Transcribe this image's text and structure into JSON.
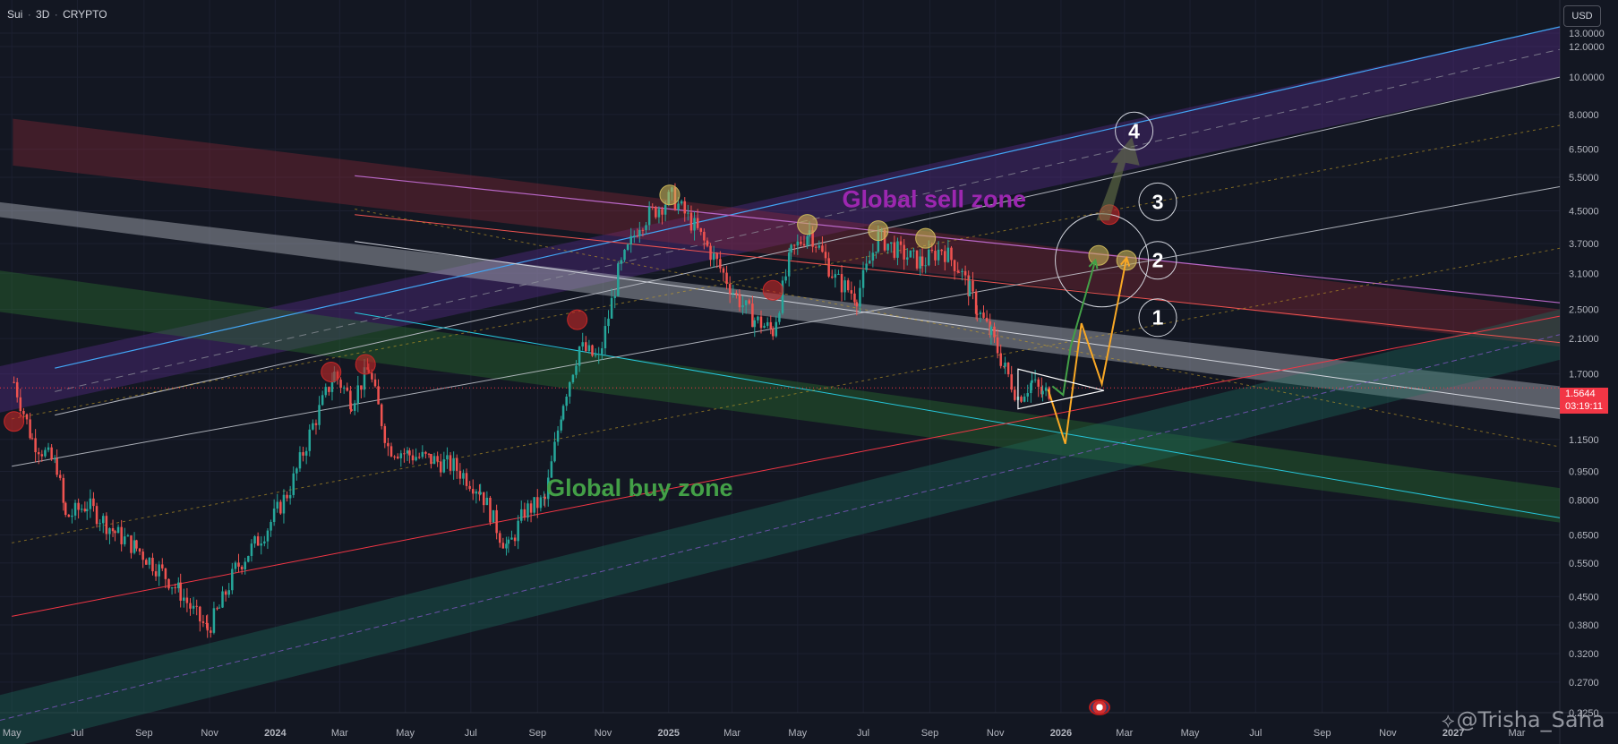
{
  "header": {
    "symbol": "Sui",
    "interval": "3D",
    "exchange": "CRYPTO",
    "separator": "·"
  },
  "currency": "USD",
  "last_price": "1.5644",
  "countdown": "03:19:11",
  "watermark": "@Trisha_Saha",
  "colors": {
    "background": "#131722",
    "candle_up": "#26a69a",
    "candle_down": "#ef5350",
    "sell_zone": "#9c27b0",
    "buy_zone": "#43a047",
    "price_line": "#f23645"
  },
  "chart_data": {
    "type": "candlestick",
    "y_scale": "log",
    "ylim": [
      0.225,
      13.5
    ],
    "xlim": [
      "2023-04-20",
      "2027-04-10"
    ],
    "y_ticks": [
      "13.0000",
      "12.0000",
      "10.0000",
      "8.0000",
      "6.5000",
      "5.5000",
      "4.5000",
      "3.7000",
      "3.1000",
      "2.5000",
      "2.1000",
      "1.7000",
      "1.1500",
      "0.9500",
      "0.8000",
      "0.6500",
      "0.5500",
      "0.4500",
      "0.3800",
      "0.3200",
      "0.2700",
      "0.2250"
    ],
    "x_ticks": [
      "May",
      "Jul",
      "Sep",
      "Nov",
      "2024",
      "Mar",
      "May",
      "Jul",
      "Sep",
      "Nov",
      "2025",
      "Mar",
      "May",
      "Jul",
      "Sep",
      "Nov",
      "2026",
      "Mar",
      "May",
      "Jul",
      "Sep",
      "Nov",
      "2027",
      "Mar"
    ],
    "x_tick_dates": [
      "2023-05-01",
      "2023-07-01",
      "2023-09-01",
      "2023-11-01",
      "2024-01-01",
      "2024-03-01",
      "2024-05-01",
      "2024-07-01",
      "2024-09-01",
      "2024-11-01",
      "2025-01-01",
      "2025-03-01",
      "2025-05-01",
      "2025-07-01",
      "2025-09-01",
      "2025-11-01",
      "2026-01-01",
      "2026-03-01",
      "2026-05-01",
      "2026-07-01",
      "2026-09-01",
      "2026-11-01",
      "2027-01-01",
      "2027-03-01"
    ],
    "price_path": [
      [
        "2023-05-03",
        1.62
      ],
      [
        "2023-05-20",
        1.15
      ],
      [
        "2023-06-12",
        0.98
      ],
      [
        "2023-06-20",
        0.72
      ],
      [
        "2023-07-10",
        0.78
      ],
      [
        "2023-08-05",
        0.66
      ],
      [
        "2023-08-25",
        0.6
      ],
      [
        "2023-09-15",
        0.53
      ],
      [
        "2023-10-05",
        0.46
      ],
      [
        "2023-10-20",
        0.4
      ],
      [
        "2023-10-30",
        0.37
      ],
      [
        "2023-11-10",
        0.42
      ],
      [
        "2023-11-25",
        0.53
      ],
      [
        "2023-12-10",
        0.6
      ],
      [
        "2023-12-25",
        0.68
      ],
      [
        "2024-01-15",
        0.86
      ],
      [
        "2024-02-05",
        1.25
      ],
      [
        "2024-02-25",
        1.7
      ],
      [
        "2024-03-12",
        1.45
      ],
      [
        "2024-03-28",
        1.75
      ],
      [
        "2024-04-15",
        1.1
      ],
      [
        "2024-05-05",
        1.05
      ],
      [
        "2024-05-25",
        1.02
      ],
      [
        "2024-06-15",
        0.98
      ],
      [
        "2024-07-10",
        0.85
      ],
      [
        "2024-07-28",
        0.65
      ],
      [
        "2024-08-05",
        0.6
      ],
      [
        "2024-08-20",
        0.75
      ],
      [
        "2024-09-08",
        0.8
      ],
      [
        "2024-09-25",
        1.45
      ],
      [
        "2024-10-10",
        2.0
      ],
      [
        "2024-10-28",
        1.85
      ],
      [
        "2024-11-15",
        3.1
      ],
      [
        "2024-12-05",
        4.2
      ],
      [
        "2025-01-04",
        4.9
      ],
      [
        "2025-01-25",
        4.1
      ],
      [
        "2025-02-15",
        3.3
      ],
      [
        "2025-03-05",
        2.7
      ],
      [
        "2025-03-22",
        2.35
      ],
      [
        "2025-04-08",
        2.2
      ],
      [
        "2025-04-25",
        3.5
      ],
      [
        "2025-05-12",
        4.0
      ],
      [
        "2025-06-05",
        3.0
      ],
      [
        "2025-06-25",
        2.7
      ],
      [
        "2025-07-15",
        3.85
      ],
      [
        "2025-08-05",
        3.5
      ],
      [
        "2025-08-25",
        3.3
      ],
      [
        "2025-09-12",
        3.6
      ],
      [
        "2025-09-28",
        3.2
      ],
      [
        "2025-10-08",
        2.8
      ],
      [
        "2025-10-15",
        2.5
      ],
      [
        "2025-10-28",
        2.15
      ],
      [
        "2025-11-10",
        1.75
      ],
      [
        "2025-11-22",
        1.48
      ],
      [
        "2025-12-05",
        1.62
      ],
      [
        "2025-12-15",
        1.5
      ],
      [
        "2025-12-24",
        1.5644
      ]
    ],
    "annotations": [
      {
        "text": "Global sell zone",
        "color": "#9c27b0",
        "date": "2025-09-05",
        "price": 4.6
      },
      {
        "text": "Global buy zone",
        "color": "#43a047",
        "date": "2024-12-05",
        "price": 0.82
      },
      {
        "text": "1",
        "date": "2026-04-01",
        "price": 2.38
      },
      {
        "text": "2",
        "date": "2026-04-01",
        "price": 3.35
      },
      {
        "text": "3",
        "date": "2026-04-01",
        "price": 4.75
      },
      {
        "text": "4",
        "date": "2026-03-10",
        "price": 7.25
      }
    ]
  }
}
